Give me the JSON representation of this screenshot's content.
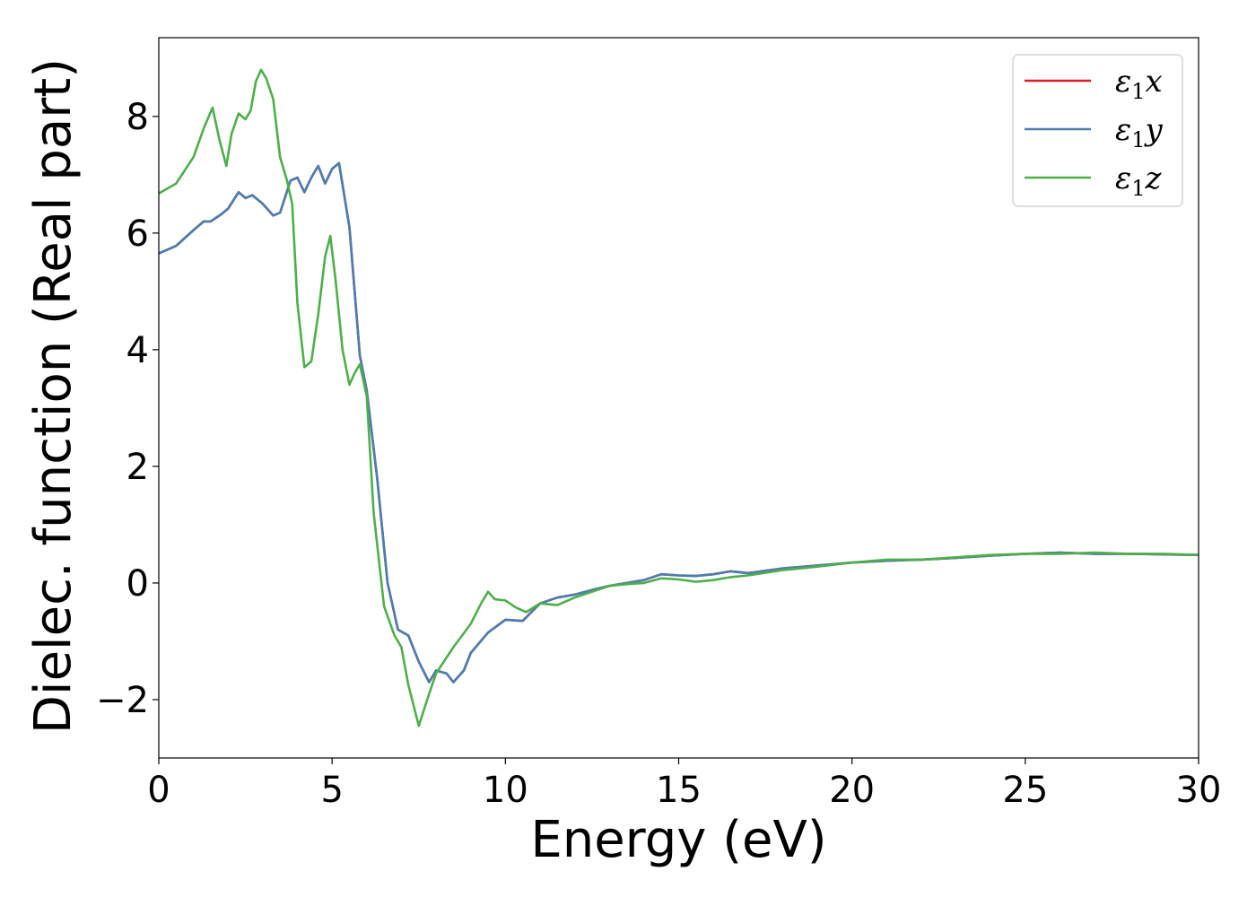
{
  "chart_data": {
    "type": "line",
    "title": "",
    "xlabel": "Energy (eV)",
    "ylabel": "Dielec. function (Real part)",
    "xlim": [
      0,
      30
    ],
    "ylim": [
      -3,
      9.35
    ],
    "xticks": [
      0,
      5,
      10,
      15,
      20,
      25,
      30
    ],
    "xtick_labels": [
      "0",
      "5",
      "10",
      "15",
      "20",
      "25",
      "30"
    ],
    "yticks": [
      -2,
      0,
      2,
      4,
      6,
      8
    ],
    "ytick_labels": [
      "−2",
      "0",
      "2",
      "4",
      "6",
      "8"
    ],
    "grid": false,
    "legend": {
      "placement": "top-right"
    },
    "series": [
      {
        "name": "ε₁x",
        "legend": {
          "symbol": "ε",
          "sub": "1",
          "suffix": "x"
        },
        "color": "#e41a1c",
        "x": [
          0,
          0.5,
          1.0,
          1.3,
          1.5,
          1.8,
          2.0,
          2.3,
          2.5,
          2.7,
          3.0,
          3.3,
          3.5,
          3.8,
          4.0,
          4.2,
          4.4,
          4.6,
          4.8,
          5.0,
          5.2,
          5.5,
          5.8,
          6.0,
          6.3,
          6.6,
          6.9,
          7.2,
          7.5,
          7.8,
          8.0,
          8.3,
          8.5,
          8.8,
          9.0,
          9.5,
          10.0,
          10.5,
          11.0,
          11.5,
          12.0,
          12.5,
          13.0,
          13.5,
          14.0,
          14.5,
          15.0,
          15.5,
          16.0,
          16.5,
          17.0,
          18.0,
          19.0,
          20.0,
          21.0,
          22.0,
          23.0,
          24.0,
          25.0,
          26.0,
          27.0,
          28.0,
          29.0,
          30.0
        ],
        "y": [
          5.65,
          5.78,
          6.05,
          6.2,
          6.2,
          6.32,
          6.42,
          6.7,
          6.6,
          6.65,
          6.5,
          6.3,
          6.35,
          6.9,
          6.95,
          6.7,
          6.95,
          7.15,
          6.85,
          7.1,
          7.2,
          6.1,
          3.9,
          3.3,
          1.8,
          0.0,
          -0.8,
          -0.9,
          -1.35,
          -1.7,
          -1.5,
          -1.55,
          -1.7,
          -1.5,
          -1.2,
          -0.85,
          -0.63,
          -0.65,
          -0.35,
          -0.25,
          -0.2,
          -0.12,
          -0.05,
          0.0,
          0.05,
          0.15,
          0.13,
          0.12,
          0.15,
          0.2,
          0.17,
          0.25,
          0.3,
          0.35,
          0.38,
          0.4,
          0.43,
          0.47,
          0.5,
          0.52,
          0.5,
          0.5,
          0.49,
          0.48
        ]
      },
      {
        "name": "ε₁y",
        "legend": {
          "symbol": "ε",
          "sub": "1",
          "suffix": "y"
        },
        "color": "#4a7eb0",
        "x": [
          0,
          0.5,
          1.0,
          1.3,
          1.5,
          1.8,
          2.0,
          2.3,
          2.5,
          2.7,
          3.0,
          3.3,
          3.5,
          3.8,
          4.0,
          4.2,
          4.4,
          4.6,
          4.8,
          5.0,
          5.2,
          5.5,
          5.8,
          6.0,
          6.3,
          6.6,
          6.9,
          7.2,
          7.5,
          7.8,
          8.0,
          8.3,
          8.5,
          8.8,
          9.0,
          9.5,
          10.0,
          10.5,
          11.0,
          11.5,
          12.0,
          12.5,
          13.0,
          13.5,
          14.0,
          14.5,
          15.0,
          15.5,
          16.0,
          16.5,
          17.0,
          18.0,
          19.0,
          20.0,
          21.0,
          22.0,
          23.0,
          24.0,
          25.0,
          26.0,
          27.0,
          28.0,
          29.0,
          30.0
        ],
        "y": [
          5.65,
          5.78,
          6.05,
          6.2,
          6.2,
          6.32,
          6.42,
          6.7,
          6.6,
          6.65,
          6.5,
          6.3,
          6.35,
          6.9,
          6.95,
          6.7,
          6.95,
          7.15,
          6.85,
          7.1,
          7.2,
          6.1,
          3.9,
          3.3,
          1.8,
          0.0,
          -0.8,
          -0.9,
          -1.35,
          -1.7,
          -1.5,
          -1.55,
          -1.7,
          -1.5,
          -1.2,
          -0.85,
          -0.63,
          -0.65,
          -0.35,
          -0.25,
          -0.2,
          -0.12,
          -0.05,
          0.0,
          0.05,
          0.15,
          0.13,
          0.12,
          0.15,
          0.2,
          0.17,
          0.25,
          0.3,
          0.35,
          0.38,
          0.4,
          0.43,
          0.47,
          0.5,
          0.52,
          0.5,
          0.5,
          0.49,
          0.48
        ]
      },
      {
        "name": "ε₁z",
        "legend": {
          "symbol": "ε",
          "sub": "1",
          "suffix": "z"
        },
        "color": "#4daf4a",
        "x": [
          0,
          0.5,
          1.0,
          1.3,
          1.55,
          1.75,
          1.95,
          2.1,
          2.3,
          2.5,
          2.65,
          2.8,
          2.95,
          3.1,
          3.3,
          3.5,
          3.7,
          3.85,
          4.0,
          4.2,
          4.4,
          4.6,
          4.8,
          4.95,
          5.1,
          5.3,
          5.5,
          5.65,
          5.8,
          6.0,
          6.2,
          6.5,
          6.8,
          7.0,
          7.2,
          7.5,
          7.8,
          8.0,
          8.5,
          9.0,
          9.3,
          9.5,
          9.7,
          10.0,
          10.3,
          10.6,
          11.0,
          11.5,
          12.0,
          12.5,
          13.0,
          13.5,
          14.0,
          14.5,
          15.0,
          15.5,
          16.0,
          16.5,
          17.0,
          18.0,
          19.0,
          20.0,
          21.0,
          22.0,
          23.0,
          24.0,
          25.0,
          26.0,
          27.0,
          28.0,
          29.0,
          30.0
        ],
        "y": [
          6.68,
          6.85,
          7.3,
          7.8,
          8.15,
          7.6,
          7.15,
          7.7,
          8.05,
          7.95,
          8.1,
          8.6,
          8.8,
          8.65,
          8.3,
          7.3,
          6.9,
          6.5,
          4.8,
          3.7,
          3.8,
          4.6,
          5.6,
          5.95,
          5.2,
          4.0,
          3.4,
          3.6,
          3.75,
          3.2,
          1.2,
          -0.4,
          -0.9,
          -1.1,
          -1.75,
          -2.45,
          -1.9,
          -1.55,
          -1.1,
          -0.7,
          -0.35,
          -0.15,
          -0.28,
          -0.3,
          -0.42,
          -0.5,
          -0.35,
          -0.38,
          -0.25,
          -0.15,
          -0.05,
          -0.02,
          0.0,
          0.08,
          0.06,
          0.02,
          0.05,
          0.1,
          0.13,
          0.22,
          0.28,
          0.35,
          0.4,
          0.4,
          0.44,
          0.48,
          0.5,
          0.5,
          0.52,
          0.5,
          0.5,
          0.48
        ]
      }
    ]
  }
}
